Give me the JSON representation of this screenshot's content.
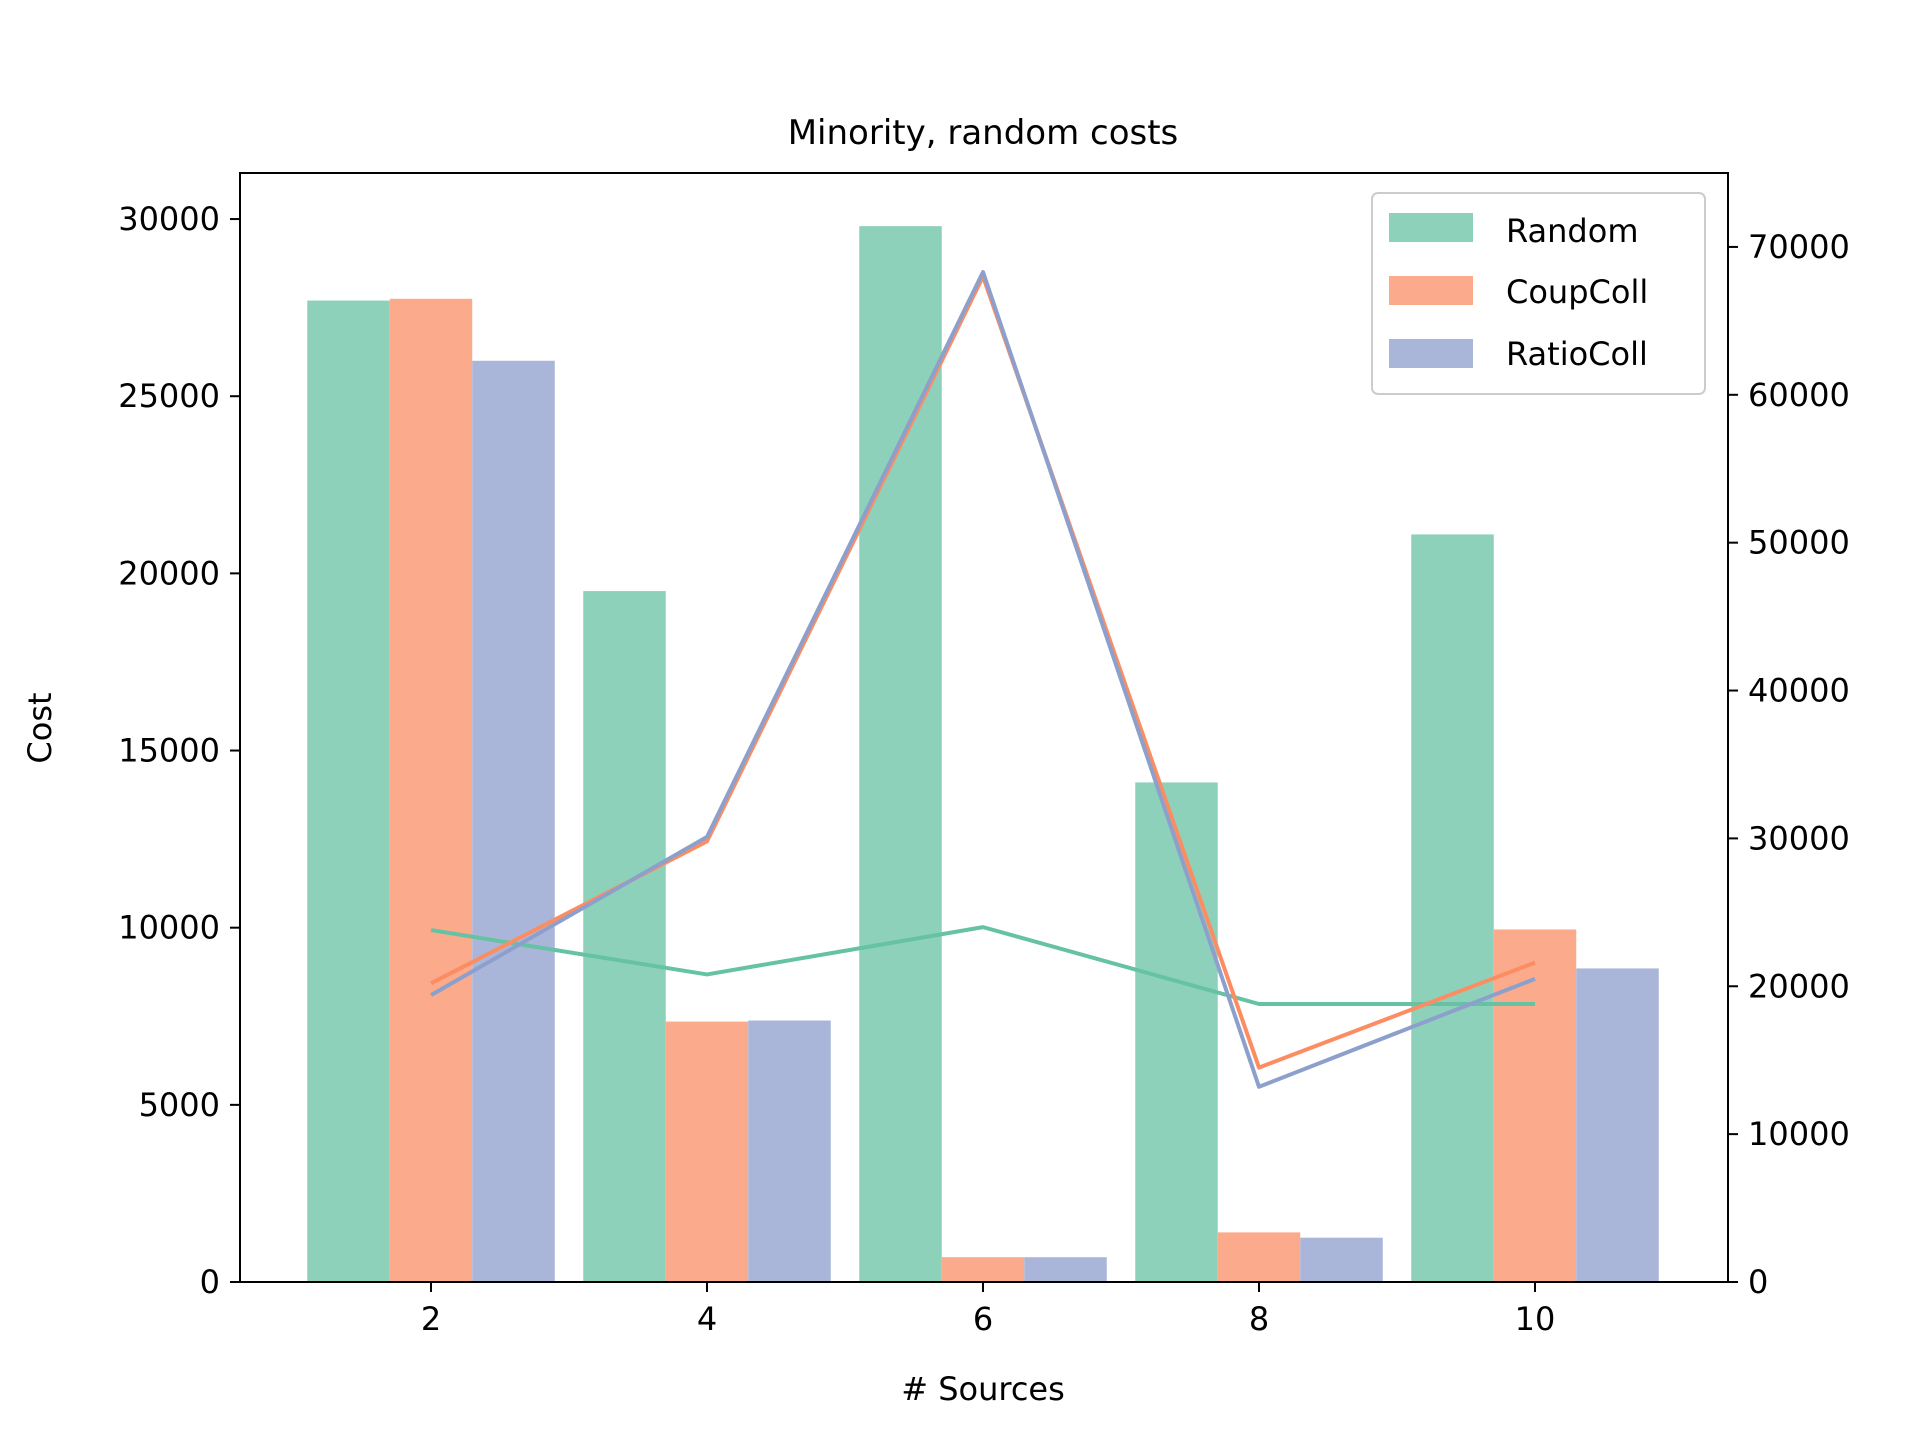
{
  "chart_data": {
    "type": "bar",
    "title": "Minority, random costs",
    "xlabel": "# Sources",
    "ylabel": "Cost",
    "y2label": "",
    "x": [
      2,
      4,
      6,
      8,
      10
    ],
    "xticks": [
      "2",
      "4",
      "6",
      "8",
      "10"
    ],
    "ylim": [
      0,
      31300
    ],
    "yticks": [
      0,
      5000,
      10000,
      15000,
      20000,
      25000,
      30000
    ],
    "ytick_labels": [
      "0",
      "5000",
      "10000",
      "15000",
      "20000",
      "25000",
      "30000"
    ],
    "y2lim": [
      0,
      75000
    ],
    "y2ticks": [
      0,
      10000,
      20000,
      30000,
      40000,
      50000,
      60000,
      70000
    ],
    "y2tick_labels": [
      "0",
      "10000",
      "20000",
      "30000",
      "40000",
      "50000",
      "60000",
      "70000"
    ],
    "grid": false,
    "legend_position": "top-right",
    "bar_series": [
      {
        "name": "Random",
        "color": "#8dd1bb",
        "values": [
          27700,
          19500,
          29800,
          14100,
          21100
        ]
      },
      {
        "name": "CoupColl",
        "color": "#fbaa8c",
        "values": [
          27750,
          7350,
          700,
          1400,
          9950
        ]
      },
      {
        "name": "RatioColl",
        "color": "#aab6d9",
        "values": [
          26000,
          7380,
          700,
          1250,
          8850
        ]
      }
    ],
    "line_series": [
      {
        "name": "Random",
        "color": "#66c2a5",
        "axis": "right",
        "values": [
          23800,
          20800,
          24000,
          18800,
          18800
        ]
      },
      {
        "name": "CoupColl",
        "color": "#fc8d62",
        "axis": "right",
        "values": [
          20200,
          29800,
          68000,
          14500,
          21600
        ]
      },
      {
        "name": "RatioColl",
        "color": "#8da0cb",
        "axis": "right",
        "values": [
          19400,
          30100,
          68300,
          13200,
          20500
        ]
      }
    ]
  }
}
